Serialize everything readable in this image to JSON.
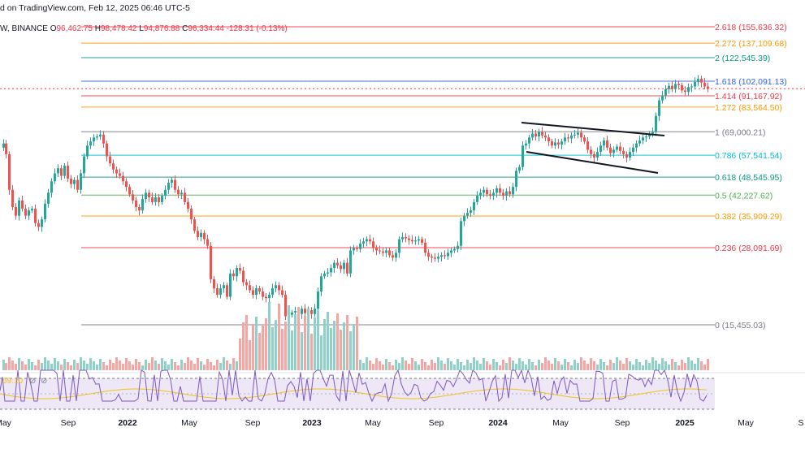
{
  "header": {
    "published": "d on TradingView.com, Feb 12, 2025 06:46 UTC-5",
    "symbol": "W, BINANCE",
    "open_label": "O",
    "open": "96,462.75",
    "high_label": "H",
    "high": "98,478.42",
    "low_label": "L",
    "low": "94,876.88",
    "close_label": "C",
    "close": "96,334.44",
    "change": "-128.31 (-0.13%)"
  },
  "rsi_panel": {
    "value": "69.10"
  },
  "colors": {
    "up": "#26a69a",
    "down": "#ef5350",
    "vol_up": "#8fd1c8",
    "vol_down": "#f4a6a5",
    "rsi_line": "#7e57c2",
    "rsi_ma": "#f0c419",
    "rsi_band": "#ede7f6"
  },
  "chart_data": {
    "type": "candlestick",
    "xaxis_ticks": [
      "May",
      "Sep",
      "2022",
      "May",
      "Sep",
      "2023",
      "May",
      "Sep",
      "2024",
      "May",
      "Sep",
      "2025",
      "May",
      "S"
    ],
    "fib_levels": [
      {
        "level": "2.618",
        "price": "155,636.32",
        "value": 155636.32,
        "color": "#f23645"
      },
      {
        "level": "2.272",
        "price": "137,109.68",
        "value": 137109.68,
        "color": "#ff9800"
      },
      {
        "level": "2",
        "price": "122,545.39",
        "value": 122545.39,
        "color": "#089981"
      },
      {
        "level": "1.618",
        "price": "102,091.13",
        "value": 102091.13,
        "color": "#2962ff"
      },
      {
        "level": "1.414",
        "price": "91,167.92",
        "value": 91167.92,
        "color": "#f23645"
      },
      {
        "level": "1.272",
        "price": "83,564.50",
        "value": 83564.5,
        "color": "#ff9800"
      },
      {
        "level": "1",
        "price": "69,000.21",
        "value": 69000.21,
        "color": "#787b86"
      },
      {
        "level": "0.786",
        "price": "57,541.54",
        "value": 57541.54,
        "color": "#00bcd4"
      },
      {
        "level": "0.618",
        "price": "48,545.95",
        "value": 48545.95,
        "color": "#089981"
      },
      {
        "level": "0.5",
        "price": "42,227.62",
        "value": 42227.62,
        "color": "#4caf50"
      },
      {
        "level": "0.382",
        "price": "35,909.29",
        "value": 35909.29,
        "color": "#ff9800"
      },
      {
        "level": "0.236",
        "price": "28,091.69",
        "value": 28091.69,
        "color": "#f23645"
      },
      {
        "level": "0",
        "price": "15,455.03",
        "value": 15455.03,
        "color": "#787b86"
      }
    ],
    "price_path": [
      [
        0,
        61000
      ],
      [
        3,
        63000
      ],
      [
        6,
        58000
      ],
      [
        10,
        44000
      ],
      [
        14,
        38500
      ],
      [
        18,
        36000
      ],
      [
        22,
        40500
      ],
      [
        26,
        38000
      ],
      [
        30,
        36000
      ],
      [
        34,
        37500
      ],
      [
        38,
        38000
      ],
      [
        42,
        34000
      ],
      [
        46,
        33000
      ],
      [
        50,
        35000
      ],
      [
        54,
        39500
      ],
      [
        58,
        43000
      ],
      [
        62,
        47000
      ],
      [
        66,
        50000
      ],
      [
        70,
        52000
      ],
      [
        74,
        49000
      ],
      [
        78,
        53000
      ],
      [
        82,
        48000
      ],
      [
        86,
        46000
      ],
      [
        90,
        47500
      ],
      [
        94,
        44000
      ],
      [
        98,
        50000
      ],
      [
        102,
        57000
      ],
      [
        106,
        62000
      ],
      [
        110,
        64000
      ],
      [
        114,
        66000
      ],
      [
        118,
        66500
      ],
      [
        122,
        67500
      ],
      [
        126,
        63000
      ],
      [
        130,
        57000
      ],
      [
        134,
        54000
      ],
      [
        138,
        51500
      ],
      [
        142,
        50000
      ],
      [
        146,
        49000
      ],
      [
        150,
        47000
      ],
      [
        154,
        45000
      ],
      [
        158,
        42500
      ],
      [
        162,
        40500
      ],
      [
        166,
        38500
      ],
      [
        170,
        37500
      ],
      [
        174,
        41000
      ],
      [
        178,
        43000
      ],
      [
        182,
        41500
      ],
      [
        186,
        40000
      ],
      [
        190,
        41500
      ],
      [
        194,
        40000
      ],
      [
        198,
        42000
      ],
      [
        202,
        44000
      ],
      [
        206,
        46500
      ],
      [
        210,
        47500
      ],
      [
        214,
        44000
      ],
      [
        218,
        42500
      ],
      [
        222,
        43000
      ],
      [
        226,
        40000
      ],
      [
        230,
        38000
      ],
      [
        234,
        35000
      ],
      [
        238,
        32000
      ],
      [
        242,
        30500
      ],
      [
        246,
        31500
      ],
      [
        250,
        30000
      ],
      [
        254,
        28500
      ],
      [
        258,
        22000
      ],
      [
        262,
        20500
      ],
      [
        266,
        19500
      ],
      [
        270,
        20500
      ],
      [
        274,
        21000
      ],
      [
        278,
        19200
      ],
      [
        282,
        23000
      ],
      [
        286,
        22500
      ],
      [
        290,
        24000
      ],
      [
        294,
        23500
      ],
      [
        298,
        21500
      ],
      [
        302,
        21000
      ],
      [
        306,
        20200
      ],
      [
        310,
        19500
      ],
      [
        314,
        20500
      ],
      [
        318,
        20000
      ],
      [
        322,
        19200
      ],
      [
        326,
        19000
      ],
      [
        330,
        19500
      ],
      [
        334,
        20500
      ],
      [
        338,
        21000
      ],
      [
        342,
        20200
      ],
      [
        346,
        19500
      ],
      [
        350,
        16500
      ],
      [
        354,
        16700
      ],
      [
        358,
        17000
      ],
      [
        362,
        17200
      ],
      [
        366,
        16800
      ],
      [
        370,
        17500
      ],
      [
        374,
        16900
      ],
      [
        378,
        17300
      ],
      [
        382,
        16800
      ],
      [
        386,
        17500
      ],
      [
        390,
        20000
      ],
      [
        394,
        22500
      ],
      [
        398,
        23000
      ],
      [
        402,
        23200
      ],
      [
        406,
        24000
      ],
      [
        410,
        25000
      ],
      [
        414,
        24500
      ],
      [
        418,
        23800
      ],
      [
        422,
        25000
      ],
      [
        426,
        23000
      ],
      [
        430,
        27500
      ],
      [
        434,
        28000
      ],
      [
        438,
        27800
      ],
      [
        442,
        29000
      ],
      [
        446,
        29500
      ],
      [
        450,
        30000
      ],
      [
        454,
        29500
      ],
      [
        458,
        28000
      ],
      [
        462,
        27500
      ],
      [
        466,
        27300
      ],
      [
        470,
        27000
      ],
      [
        474,
        27500
      ],
      [
        478,
        26500
      ],
      [
        482,
        26000
      ],
      [
        486,
        27000
      ],
      [
        490,
        30000
      ],
      [
        494,
        30500
      ],
      [
        498,
        30200
      ],
      [
        502,
        29800
      ],
      [
        506,
        29500
      ],
      [
        510,
        29700
      ],
      [
        514,
        30000
      ],
      [
        518,
        29200
      ],
      [
        522,
        27000
      ],
      [
        526,
        26200
      ],
      [
        530,
        26000
      ],
      [
        534,
        25800
      ],
      [
        538,
        26200
      ],
      [
        542,
        26500
      ],
      [
        546,
        26300
      ],
      [
        550,
        27000
      ],
      [
        554,
        27500
      ],
      [
        558,
        27800
      ],
      [
        562,
        28500
      ],
      [
        566,
        34500
      ],
      [
        570,
        36000
      ],
      [
        574,
        36800
      ],
      [
        578,
        37500
      ],
      [
        582,
        40000
      ],
      [
        586,
        42000
      ],
      [
        590,
        43000
      ],
      [
        594,
        44000
      ],
      [
        598,
        42500
      ],
      [
        602,
        42000
      ],
      [
        606,
        43000
      ],
      [
        610,
        44500
      ],
      [
        614,
        43000
      ],
      [
        618,
        42000
      ],
      [
        622,
        43500
      ],
      [
        626,
        42500
      ],
      [
        630,
        45000
      ],
      [
        634,
        51000
      ],
      [
        638,
        52500
      ],
      [
        642,
        62000
      ],
      [
        646,
        63000
      ],
      [
        650,
        66000
      ],
      [
        654,
        68000
      ],
      [
        658,
        66500
      ],
      [
        662,
        69000
      ],
      [
        666,
        67000
      ],
      [
        670,
        66000
      ],
      [
        674,
        64000
      ],
      [
        678,
        62000
      ],
      [
        682,
        63500
      ],
      [
        686,
        62500
      ],
      [
        690,
        64000
      ],
      [
        694,
        66000
      ],
      [
        698,
        65500
      ],
      [
        702,
        67000
      ],
      [
        706,
        67500
      ],
      [
        710,
        68500
      ],
      [
        714,
        66000
      ],
      [
        718,
        64000
      ],
      [
        722,
        60000
      ],
      [
        726,
        58000
      ],
      [
        730,
        56500
      ],
      [
        734,
        59000
      ],
      [
        738,
        62000
      ],
      [
        742,
        64500
      ],
      [
        746,
        61000
      ],
      [
        750,
        58500
      ],
      [
        754,
        60000
      ],
      [
        758,
        61500
      ],
      [
        762,
        59500
      ],
      [
        766,
        58000
      ],
      [
        770,
        56500
      ],
      [
        774,
        59000
      ],
      [
        778,
        61000
      ],
      [
        782,
        63000
      ],
      [
        786,
        64500
      ],
      [
        790,
        66000
      ],
      [
        794,
        66500
      ],
      [
        798,
        68000
      ],
      [
        802,
        69000
      ],
      [
        806,
        78000
      ],
      [
        810,
        88000
      ],
      [
        814,
        91500
      ],
      [
        818,
        96000
      ],
      [
        822,
        98500
      ],
      [
        826,
        96000
      ],
      [
        830,
        100000
      ],
      [
        834,
        99000
      ],
      [
        838,
        95000
      ],
      [
        842,
        94000
      ],
      [
        846,
        97500
      ],
      [
        850,
        98000
      ],
      [
        854,
        101500
      ],
      [
        858,
        104000
      ],
      [
        862,
        101000
      ],
      [
        866,
        98000
      ],
      [
        870,
        96300
      ]
    ],
    "volume": [],
    "rsi_series": []
  }
}
